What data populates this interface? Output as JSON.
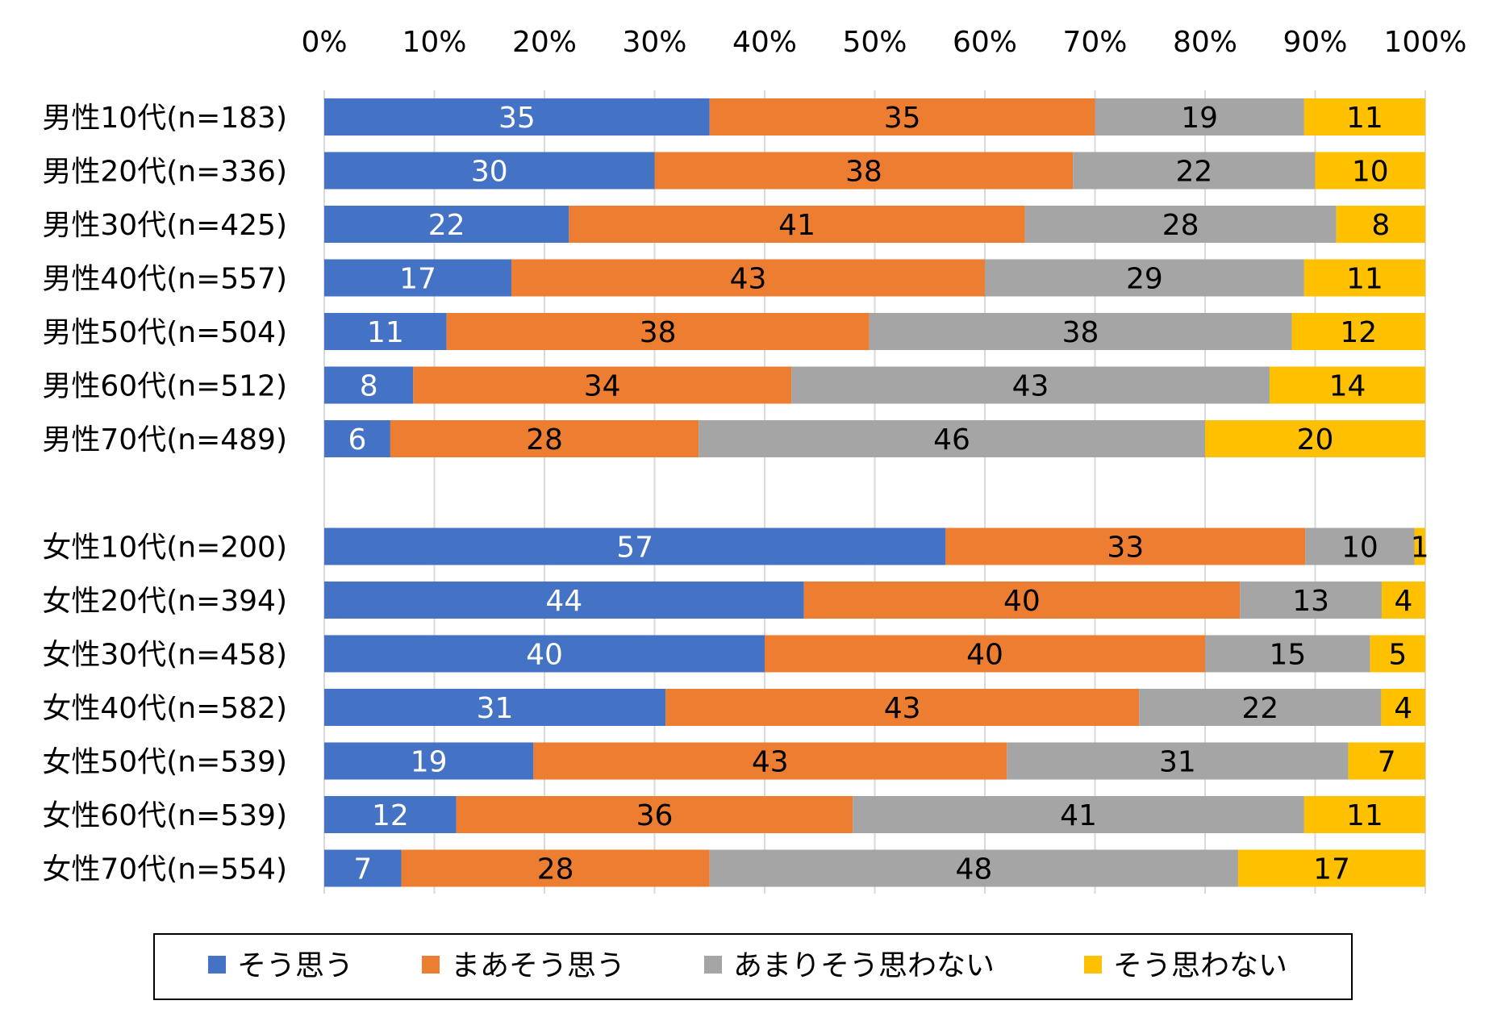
{
  "chart_data": {
    "type": "bar",
    "orientation": "horizontal",
    "stacked": "100%",
    "xlim": [
      0,
      100
    ],
    "x_ticks": [
      "0%",
      "10%",
      "20%",
      "30%",
      "40%",
      "50%",
      "60%",
      "70%",
      "80%",
      "90%",
      "100%"
    ],
    "grid": true,
    "legend_position": "bottom",
    "categories": [
      "男性10代(n=183)",
      "男性20代(n=336)",
      "男性30代(n=425)",
      "男性40代(n=557)",
      "男性50代(n=504)",
      "男性60代(n=512)",
      "男性70代(n=489)",
      "女性10代(n=200)",
      "女性20代(n=394)",
      "女性30代(n=458)",
      "女性40代(n=582)",
      "女性50代(n=539)",
      "女性60代(n=539)",
      "女性70代(n=554)"
    ],
    "group_break_after": 7,
    "series": [
      {
        "name": "そう思う",
        "color": "#4472C4",
        "label_color": "#ffffff",
        "values": [
          35,
          30,
          22,
          17,
          11,
          8,
          6,
          57,
          44,
          40,
          31,
          19,
          12,
          7
        ]
      },
      {
        "name": "まあそう思う",
        "color": "#ED7D31",
        "label_color": "#000000",
        "values": [
          35,
          38,
          41,
          43,
          38,
          34,
          28,
          33,
          40,
          40,
          43,
          43,
          36,
          28
        ]
      },
      {
        "name": "あまりそう思わない",
        "color": "#A5A5A5",
        "label_color": "#000000",
        "values": [
          19,
          22,
          28,
          29,
          38,
          43,
          46,
          10,
          13,
          15,
          22,
          31,
          41,
          48
        ]
      },
      {
        "name": "そう思わない",
        "color": "#FFC000",
        "label_color": "#000000",
        "values": [
          11,
          10,
          8,
          11,
          12,
          14,
          20,
          1,
          4,
          5,
          4,
          7,
          11,
          17
        ]
      }
    ]
  }
}
